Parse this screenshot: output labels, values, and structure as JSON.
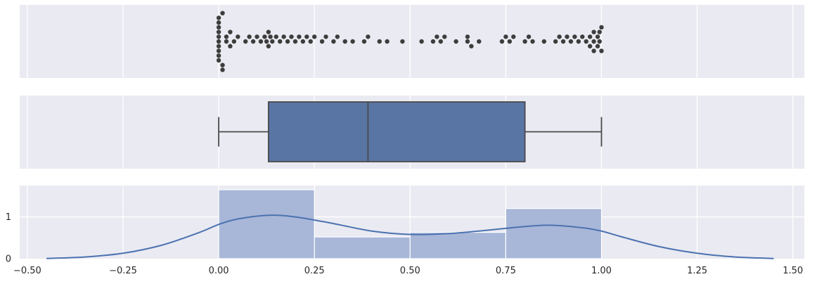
{
  "chart_data": [
    {
      "type": "scatter",
      "subtype": "swarm",
      "xlim": [
        -0.52,
        1.53
      ],
      "grid": true,
      "values": [
        0.0,
        0.0,
        0.0,
        0.0,
        0.0,
        0.0,
        0.0,
        0.0,
        0.0,
        0.0,
        0.01,
        0.01,
        0.01,
        0.02,
        0.02,
        0.03,
        0.03,
        0.04,
        0.05,
        0.07,
        0.08,
        0.09,
        0.1,
        0.11,
        0.12,
        0.125,
        0.13,
        0.13,
        0.135,
        0.14,
        0.15,
        0.16,
        0.17,
        0.18,
        0.19,
        0.2,
        0.21,
        0.22,
        0.23,
        0.24,
        0.25,
        0.27,
        0.28,
        0.3,
        0.31,
        0.33,
        0.35,
        0.38,
        0.39,
        0.42,
        0.44,
        0.48,
        0.53,
        0.56,
        0.57,
        0.58,
        0.59,
        0.62,
        0.65,
        0.65,
        0.66,
        0.68,
        0.74,
        0.75,
        0.76,
        0.77,
        0.8,
        0.81,
        0.82,
        0.85,
        0.88,
        0.89,
        0.9,
        0.91,
        0.92,
        0.93,
        0.94,
        0.95,
        0.96,
        0.97,
        0.97,
        0.98,
        0.98,
        0.98,
        0.99,
        0.99,
        0.995,
        0.995,
        1.0,
        1.0
      ]
    },
    {
      "type": "box",
      "xlim": [
        -0.52,
        1.53
      ],
      "grid": true,
      "min": 0.0,
      "q1": 0.13,
      "median": 0.39,
      "q3": 0.8,
      "max": 1.0,
      "color": "#5975a4"
    },
    {
      "type": "histogram",
      "xlim": [
        -0.52,
        1.53
      ],
      "ylim": [
        0,
        1.75
      ],
      "grid": true,
      "bins": [
        0.0,
        0.25,
        0.5,
        0.75,
        1.0
      ],
      "density": [
        1.65,
        0.52,
        0.63,
        1.2
      ],
      "bar_color": "#a8b7d8",
      "kde": {
        "color": "#4c72b0",
        "x": [
          -0.45,
          -0.35,
          -0.25,
          -0.15,
          -0.05,
          0.0,
          0.05,
          0.13,
          0.2,
          0.3,
          0.4,
          0.5,
          0.6,
          0.7,
          0.8,
          0.87,
          0.95,
          1.0,
          1.05,
          1.15,
          1.25,
          1.35,
          1.45
        ],
        "y": [
          0.005,
          0.04,
          0.13,
          0.32,
          0.63,
          0.82,
          0.95,
          1.04,
          1.0,
          0.84,
          0.66,
          0.58,
          0.6,
          0.68,
          0.77,
          0.8,
          0.74,
          0.66,
          0.53,
          0.29,
          0.13,
          0.04,
          0.005
        ]
      },
      "x_ticks": [
        "−0.50",
        "−0.25",
        "0.00",
        "0.25",
        "0.50",
        "0.75",
        "1.00",
        "1.25",
        "1.50"
      ],
      "y_ticks": [
        "0",
        "1"
      ]
    }
  ]
}
